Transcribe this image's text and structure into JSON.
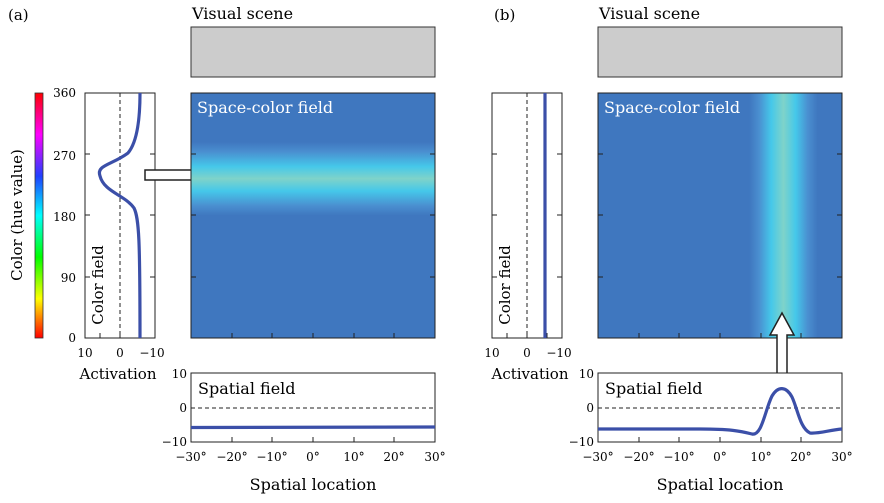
{
  "panels": [
    {
      "label": "(a)",
      "visual_scene_title": "Visual scene",
      "space_color_field_label": "Space-color field",
      "color_field_label": "Color field",
      "spatial_field_label": "Spatial field",
      "color_axis_label": "Color (hue value)",
      "color_ticks": [
        "360",
        "270",
        "180",
        "90",
        "0"
      ],
      "activation_ticks": [
        "10",
        "0",
        "−10"
      ],
      "activation_label": "Activation",
      "spatial_act_ticks": [
        "10",
        "0",
        "−10"
      ],
      "spatial_ticks": [
        "−30°",
        "−20°",
        "−10°",
        "0°",
        "10°",
        "20°",
        "30°"
      ],
      "spatial_axis_label": "Spatial location"
    },
    {
      "label": "(b)",
      "visual_scene_title": "Visual scene",
      "space_color_field_label": "Space-color field",
      "color_field_label": "Color field",
      "spatial_field_label": "Spatial field",
      "activation_ticks": [
        "10",
        "0",
        "−10"
      ],
      "activation_label": "Activation",
      "spatial_act_ticks": [
        "10",
        "0",
        "−10"
      ],
      "spatial_ticks": [
        "−30°",
        "−20°",
        "−10°",
        "0°",
        "10°",
        "20°",
        "30°"
      ],
      "spatial_axis_label": "Spatial location"
    }
  ],
  "colors": {
    "field_base": "#3f77bf",
    "field_peak": "#7fd3c9",
    "curve": "#3b4fa8",
    "scene": "#cccccc"
  }
}
